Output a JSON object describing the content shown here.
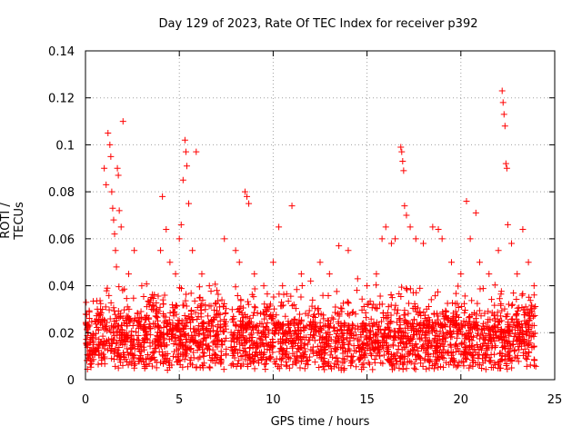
{
  "chart_data": {
    "type": "scatter",
    "title": "Day 129 of 2023, Rate Of TEC Index for receiver p392",
    "xlabel": "GPS time / hours",
    "ylabel": "ROTI / TECUs",
    "xlim": [
      0,
      25
    ],
    "ylim": [
      0,
      0.14
    ],
    "x_ticks": [
      0,
      5,
      10,
      15,
      20,
      25
    ],
    "x_tick_labels": [
      "0",
      "5",
      "10",
      "15",
      "20",
      "25"
    ],
    "y_ticks": [
      0,
      0.02,
      0.04,
      0.06,
      0.08,
      0.1,
      0.12,
      0.14
    ],
    "y_tick_labels": [
      "0",
      "0.02",
      "0.04",
      "0.06",
      "0.08",
      "0.1",
      "0.12",
      "0.14"
    ],
    "grid": true,
    "marker": "+",
    "color": "#ff0000",
    "series": [
      {
        "points": [
          [
            0.1,
            0.022
          ],
          [
            0.3,
            0.018
          ],
          [
            0.5,
            0.025
          ],
          [
            0.8,
            0.03
          ],
          [
            1.0,
            0.09
          ],
          [
            1.1,
            0.083
          ],
          [
            1.2,
            0.105
          ],
          [
            1.3,
            0.1
          ],
          [
            1.35,
            0.095
          ],
          [
            1.4,
            0.08
          ],
          [
            1.45,
            0.073
          ],
          [
            1.5,
            0.068
          ],
          [
            1.55,
            0.062
          ],
          [
            1.6,
            0.055
          ],
          [
            1.65,
            0.048
          ],
          [
            1.7,
            0.09
          ],
          [
            1.75,
            0.087
          ],
          [
            1.8,
            0.072
          ],
          [
            1.9,
            0.065
          ],
          [
            2.0,
            0.11
          ],
          [
            2.3,
            0.045
          ],
          [
            2.6,
            0.055
          ],
          [
            3.0,
            0.04
          ],
          [
            3.5,
            0.035
          ],
          [
            4.0,
            0.055
          ],
          [
            4.1,
            0.078
          ],
          [
            4.3,
            0.064
          ],
          [
            4.5,
            0.05
          ],
          [
            4.8,
            0.045
          ],
          [
            5.0,
            0.06
          ],
          [
            5.1,
            0.066
          ],
          [
            5.2,
            0.085
          ],
          [
            5.3,
            0.102
          ],
          [
            5.35,
            0.097
          ],
          [
            5.4,
            0.091
          ],
          [
            5.5,
            0.075
          ],
          [
            5.7,
            0.055
          ],
          [
            5.9,
            0.097
          ],
          [
            6.2,
            0.045
          ],
          [
            6.6,
            0.04
          ],
          [
            7.0,
            0.038
          ],
          [
            7.4,
            0.06
          ],
          [
            8.0,
            0.055
          ],
          [
            8.2,
            0.05
          ],
          [
            8.5,
            0.08
          ],
          [
            8.6,
            0.078
          ],
          [
            8.7,
            0.075
          ],
          [
            9.0,
            0.045
          ],
          [
            9.5,
            0.04
          ],
          [
            10.0,
            0.05
          ],
          [
            10.3,
            0.065
          ],
          [
            10.5,
            0.04
          ],
          [
            11.0,
            0.074
          ],
          [
            11.5,
            0.045
          ],
          [
            12.0,
            0.042
          ],
          [
            12.5,
            0.05
          ],
          [
            13.0,
            0.045
          ],
          [
            13.5,
            0.057
          ],
          [
            14.0,
            0.055
          ],
          [
            14.5,
            0.043
          ],
          [
            15.0,
            0.04
          ],
          [
            15.5,
            0.045
          ],
          [
            15.8,
            0.06
          ],
          [
            16.0,
            0.065
          ],
          [
            16.3,
            0.058
          ],
          [
            16.5,
            0.06
          ],
          [
            16.8,
            0.099
          ],
          [
            16.85,
            0.097
          ],
          [
            16.9,
            0.093
          ],
          [
            16.95,
            0.089
          ],
          [
            17.0,
            0.074
          ],
          [
            17.1,
            0.07
          ],
          [
            17.3,
            0.065
          ],
          [
            17.6,
            0.06
          ],
          [
            18.0,
            0.058
          ],
          [
            18.5,
            0.065
          ],
          [
            18.8,
            0.064
          ],
          [
            19.0,
            0.06
          ],
          [
            19.5,
            0.05
          ],
          [
            20.0,
            0.045
          ],
          [
            20.3,
            0.076
          ],
          [
            20.5,
            0.06
          ],
          [
            20.8,
            0.071
          ],
          [
            21.0,
            0.05
          ],
          [
            21.5,
            0.045
          ],
          [
            22.0,
            0.055
          ],
          [
            22.2,
            0.123
          ],
          [
            22.25,
            0.118
          ],
          [
            22.3,
            0.113
          ],
          [
            22.35,
            0.108
          ],
          [
            22.4,
            0.092
          ],
          [
            22.45,
            0.09
          ],
          [
            22.5,
            0.066
          ],
          [
            22.7,
            0.058
          ],
          [
            23.0,
            0.045
          ],
          [
            23.3,
            0.064
          ],
          [
            23.6,
            0.05
          ],
          [
            23.9,
            0.04
          ]
        ]
      }
    ]
  }
}
